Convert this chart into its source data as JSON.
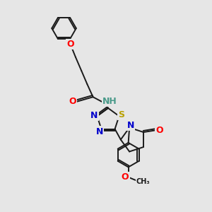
{
  "bg_color": "#e6e6e6",
  "bond_color": "#1a1a1a",
  "bond_width": 1.4,
  "figsize": [
    3.0,
    3.0
  ],
  "dpi": 100,
  "colors": {
    "O": "#ff0000",
    "N": "#0000cc",
    "S": "#b8a000",
    "C": "#1a1a1a",
    "H": "#4a9a8a",
    "bond": "#1a1a1a"
  },
  "font_sizes": {
    "small": 7,
    "medium": 8,
    "large": 9
  }
}
